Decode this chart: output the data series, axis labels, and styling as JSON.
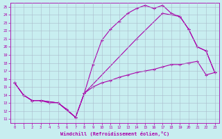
{
  "xlabel": "Windchill (Refroidissement éolien,°C)",
  "bg_color": "#c8eef0",
  "grid_color": "#aabbcc",
  "line_color": "#aa00aa",
  "xlim": [
    -0.5,
    23.5
  ],
  "ylim": [
    10.5,
    25.5
  ],
  "xticks": [
    0,
    1,
    2,
    3,
    4,
    5,
    6,
    7,
    8,
    9,
    10,
    11,
    12,
    13,
    14,
    15,
    16,
    17,
    18,
    19,
    20,
    21,
    22,
    23
  ],
  "yticks": [
    11,
    12,
    13,
    14,
    15,
    16,
    17,
    18,
    19,
    20,
    21,
    22,
    23,
    24,
    25
  ],
  "line1_x": [
    0,
    1,
    2,
    3,
    4,
    5,
    6,
    7,
    8,
    9,
    10,
    11,
    12,
    13,
    14,
    15,
    16,
    17,
    18,
    19,
    20,
    21,
    22,
    23
  ],
  "line1_y": [
    15.5,
    14.0,
    13.3,
    13.3,
    13.0,
    13.0,
    12.2,
    11.2,
    14.2,
    17.8,
    20.8,
    22.2,
    23.2,
    24.2,
    24.8,
    25.2,
    24.8,
    25.2,
    24.2,
    23.8,
    22.2,
    20.0,
    19.5,
    16.8
  ],
  "line2_x": [
    0,
    1,
    2,
    3,
    5,
    7,
    8,
    14,
    17,
    19,
    20,
    21,
    22,
    23
  ],
  "line2_y": [
    15.5,
    14.0,
    13.3,
    13.3,
    13.0,
    11.2,
    14.2,
    21.0,
    24.2,
    23.8,
    22.2,
    20.0,
    19.5,
    16.8
  ],
  "line3_x": [
    0,
    1,
    2,
    3,
    5,
    7,
    8,
    9,
    10,
    11,
    12,
    13,
    14,
    15,
    16,
    17,
    18,
    19,
    20,
    21,
    22,
    23
  ],
  "line3_y": [
    15.5,
    14.0,
    13.3,
    13.3,
    13.0,
    11.2,
    14.2,
    15.0,
    15.5,
    15.8,
    16.2,
    16.5,
    16.8,
    17.0,
    17.2,
    17.5,
    17.8,
    17.8,
    18.0,
    18.2,
    16.5,
    16.8
  ]
}
